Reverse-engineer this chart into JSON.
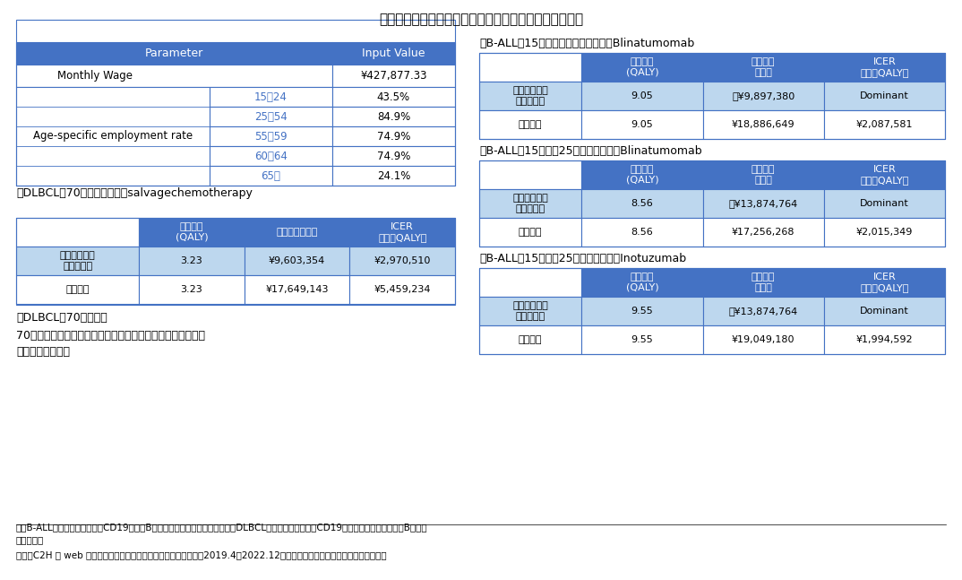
{
  "title": "表９　キムリアの費用対効果分析の日本の企業分析結果",
  "bg_color": "#ffffff",
  "header_blue": "#4472C4",
  "light_blue": "#BDD7EE",
  "white": "#ffffff",
  "text_dark": "#000000",
  "header_text": "#ffffff",
  "note1": "注）B-ALL：再発又は難治性のCD19陽性のB細胞性急性リンパ芽球性白血病、DLBCL：再発又は難治性のCD19陽性のびまん性大細胞型B細胞リ\n　　ンパ腫",
  "note2": "出所：C2H の web サイトで公開されている報告書（制度化以後の2019.4～2022.12）のマスクされていない情報をもとに作成"
}
